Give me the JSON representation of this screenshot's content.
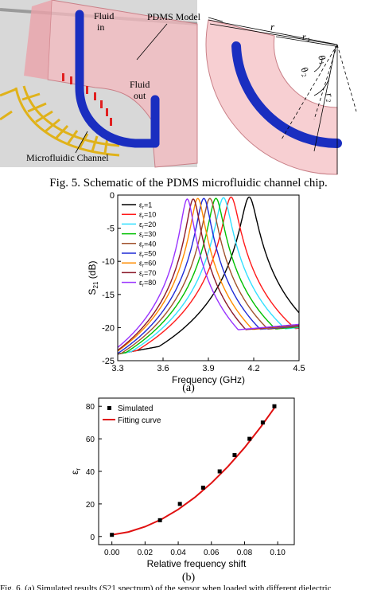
{
  "schematic": {
    "label_fluid_in": [
      "Fluid",
      "in"
    ],
    "label_fluid_out": [
      "Fluid",
      "out"
    ],
    "label_pdms_model": "PDMS Model",
    "label_microfluidic_channel": "Microfluidic Channel",
    "label_r": "r",
    "label_r1": "r",
    "label_r1_sub": "1",
    "label_r2": "r",
    "label_r2_sub": "2",
    "label_theta1": "θ",
    "label_theta1_sub": "1",
    "label_theta2": "θ",
    "label_theta2_sub": "2",
    "colors": {
      "pdms": "#f7cfd2",
      "channel": "#1a2ec0",
      "gold": "#e0b21a"
    }
  },
  "fig5_caption": "Fig. 5. Schematic of the PDMS microfluidic channel chip.",
  "panel_a_label": "(a)",
  "panel_b_label": "(b)",
  "chart_data": [
    {
      "type": "line",
      "xlabel": "Frequency (GHz)",
      "ylabel_main": "S",
      "ylabel_sub": "21",
      "ylabel_unit": " (dB)",
      "xlim": [
        3.3,
        4.5
      ],
      "ylim": [
        -25,
        0
      ],
      "xticks": [
        3.3,
        3.6,
        3.9,
        4.2,
        4.5
      ],
      "xtick_labels": [
        "3.3",
        "3.6",
        "3.9",
        "4.2",
        "4.5"
      ],
      "yticks": [
        0,
        -5,
        -10,
        -15,
        -20,
        -25
      ],
      "ytick_labels": [
        "0",
        "-5",
        "-10",
        "-15",
        "-20",
        "-25"
      ],
      "legend_symbol": "ε",
      "legend_sub": "r",
      "legend_position": "top-left",
      "series": [
        {
          "name": "=1",
          "color": "#000000",
          "resonance_ghz": 4.17,
          "peak_db": -0.3
        },
        {
          "name": "=10",
          "color": "#ff1a1a",
          "resonance_ghz": 4.05,
          "peak_db": -0.3
        },
        {
          "name": "=20",
          "color": "#33e0ff",
          "resonance_ghz": 4.0,
          "peak_db": -0.4
        },
        {
          "name": "=30",
          "color": "#00c000",
          "resonance_ghz": 3.95,
          "peak_db": -0.5
        },
        {
          "name": "=40",
          "color": "#a0522d",
          "resonance_ghz": 3.91,
          "peak_db": -0.5
        },
        {
          "name": "=50",
          "color": "#1f2bd6",
          "resonance_ghz": 3.87,
          "peak_db": -0.5
        },
        {
          "name": "=60",
          "color": "#ff8c00",
          "resonance_ghz": 3.83,
          "peak_db": -0.5
        },
        {
          "name": "=70",
          "color": "#8b1a2a",
          "resonance_ghz": 3.8,
          "peak_db": -0.6
        },
        {
          "name": "=80",
          "color": "#9933ff",
          "resonance_ghz": 3.76,
          "peak_db": -0.6
        }
      ]
    },
    {
      "type": "scatter",
      "xlabel": "Relative frequency shift",
      "ylabel_main": "ε",
      "ylabel_sub": "r",
      "xlim": [
        -0.008,
        0.11
      ],
      "ylim": [
        -5,
        85
      ],
      "xticks": [
        0,
        0.02,
        0.04,
        0.06,
        0.08,
        0.1
      ],
      "xtick_labels": [
        "0.00",
        "0.02",
        "0.04",
        "0.06",
        "0.08",
        "0.10"
      ],
      "yticks": [
        0,
        20,
        40,
        60,
        80
      ],
      "ytick_labels": [
        "0",
        "20",
        "40",
        "60",
        "80"
      ],
      "legend_position": "top-left",
      "series": [
        {
          "name": "Simulated",
          "color": "#000000",
          "x": [
            0.0,
            0.029,
            0.041,
            0.055,
            0.065,
            0.074,
            0.083,
            0.091,
            0.098
          ],
          "y": [
            1,
            10,
            20,
            30,
            40,
            50,
            60,
            70,
            80
          ]
        },
        {
          "name": "Fitting curve",
          "color": "#e01010",
          "x": [
            0.0,
            0.01,
            0.02,
            0.03,
            0.04,
            0.05,
            0.06,
            0.07,
            0.08,
            0.09,
            0.098
          ],
          "y": [
            1,
            2.8,
            6.0,
            10.6,
            16.6,
            24.0,
            32.8,
            43.0,
            54.6,
            67.6,
            79.0
          ]
        }
      ]
    }
  ],
  "bottom_caption_fragment": "Fig. 6. (a) Simulated results (S21 spectrum) of the sensor when loaded with different dielectric"
}
